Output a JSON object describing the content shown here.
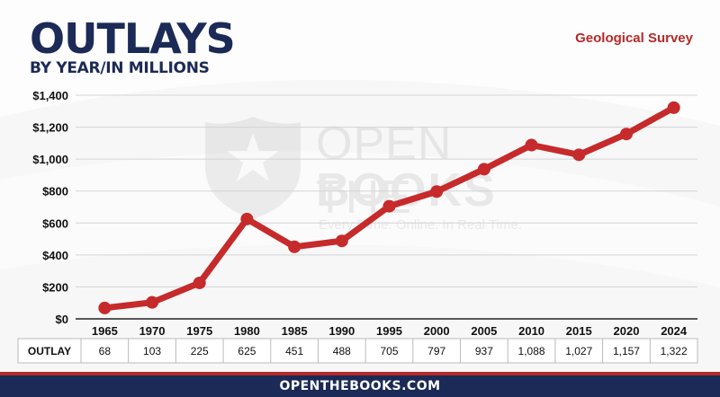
{
  "header": {
    "title": "OUTLAYS",
    "subtitle": "BY YEAR/IN MILLIONS",
    "agency": "Geological Survey"
  },
  "watermark": {
    "line1": "OPEN THE",
    "line2": "BOOKS",
    "tagline": "Every Dime. Online. In Real Time."
  },
  "footer": {
    "site": "OPENTHEBOOKS.COM"
  },
  "colors": {
    "navy": "#1b2a56",
    "red": "#b52a2a",
    "line": "#c62a2a"
  },
  "chart_data": {
    "type": "line",
    "title": "",
    "xlabel": "",
    "ylabel": "",
    "categories": [
      "1965",
      "1970",
      "1975",
      "1980",
      "1985",
      "1990",
      "1995",
      "2000",
      "2005",
      "2010",
      "2015",
      "2020",
      "2024"
    ],
    "series": [
      {
        "values": [
          68,
          103,
          225,
          625,
          451,
          488,
          705,
          797,
          937,
          1088,
          1027,
          1157,
          1322
        ]
      }
    ],
    "y_ticks": [
      "$0",
      "$200",
      "$400",
      "$600",
      "$800",
      "$1,000",
      "$1,200",
      "$1,400"
    ],
    "ylim": [
      0,
      1400
    ],
    "grid": true,
    "table": {
      "row_label": "OUTLAY",
      "values": [
        "68",
        "103",
        "225",
        "625",
        "451",
        "488",
        "705",
        "797",
        "937",
        "1,088",
        "1,027",
        "1,157",
        "1,322"
      ]
    }
  }
}
